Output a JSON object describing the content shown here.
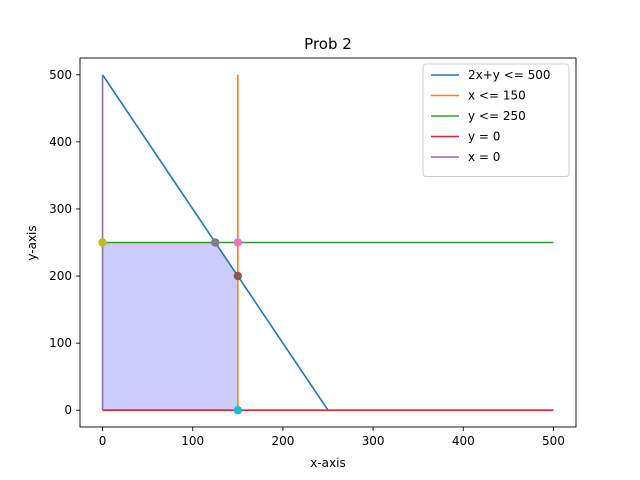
{
  "chart_data": {
    "type": "line",
    "title": "Prob 2",
    "xlabel": "x-axis",
    "ylabel": "y-axis",
    "xlim": [
      -25,
      525
    ],
    "ylim": [
      -25,
      525
    ],
    "xticks": [
      0,
      100,
      200,
      300,
      400,
      500
    ],
    "yticks": [
      0,
      100,
      200,
      300,
      400,
      500
    ],
    "grid": false,
    "legend_position": "top-right",
    "series": [
      {
        "name": "2x+y <= 500",
        "color": "#1f77b4",
        "x": [
          0,
          250
        ],
        "y": [
          500,
          0
        ]
      },
      {
        "name": "x <= 150",
        "color": "#ff7f0e",
        "x": [
          150,
          150
        ],
        "y": [
          0,
          500
        ]
      },
      {
        "name": "y <= 250",
        "color": "#2ca02c",
        "x": [
          0,
          500
        ],
        "y": [
          250,
          250
        ]
      },
      {
        "name": "y = 0",
        "color": "#d62728",
        "x": [
          0,
          500
        ],
        "y": [
          0,
          0
        ]
      },
      {
        "name": "x = 0",
        "color": "#9467bd",
        "x": [
          0,
          0
        ],
        "y": [
          0,
          500
        ]
      }
    ],
    "feasible_region": {
      "color": "#ccccff",
      "vertices": [
        [
          0,
          0
        ],
        [
          0,
          250
        ],
        [
          125,
          250
        ],
        [
          150,
          200
        ],
        [
          150,
          0
        ]
      ]
    },
    "points": [
      {
        "x": 0,
        "y": 250,
        "color": "#bcbd22"
      },
      {
        "x": 125,
        "y": 250,
        "color": "#7f7f7f"
      },
      {
        "x": 150,
        "y": 250,
        "color": "#e377c2"
      },
      {
        "x": 150,
        "y": 200,
        "color": "#8c564b"
      },
      {
        "x": 150,
        "y": 0,
        "color": "#17becf"
      }
    ]
  }
}
